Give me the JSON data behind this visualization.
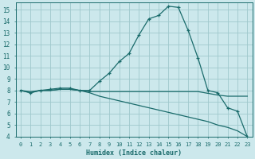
{
  "xlabel": "Humidex (Indice chaleur)",
  "bg_color": "#cce8ec",
  "grid_color": "#9fc8cc",
  "line_color": "#1a6b6b",
  "xlim": [
    -0.5,
    23.5
  ],
  "ylim": [
    4,
    15.6
  ],
  "xticks": [
    0,
    1,
    2,
    3,
    4,
    5,
    6,
    7,
    8,
    9,
    10,
    11,
    12,
    13,
    14,
    15,
    16,
    17,
    18,
    19,
    20,
    21,
    22,
    23
  ],
  "yticks": [
    4,
    5,
    6,
    7,
    8,
    9,
    10,
    11,
    12,
    13,
    14,
    15
  ],
  "line1_x": [
    0,
    1,
    2,
    3,
    4,
    5,
    6,
    7,
    8,
    9,
    10,
    11,
    12,
    13,
    14,
    15,
    16,
    17,
    18,
    19,
    20,
    21,
    22,
    23
  ],
  "line1_y": [
    8.0,
    7.8,
    8.0,
    8.1,
    8.2,
    8.2,
    8.0,
    8.0,
    8.8,
    9.5,
    10.5,
    11.2,
    12.8,
    14.2,
    14.5,
    15.3,
    15.2,
    13.2,
    10.8,
    8.0,
    7.8,
    6.5,
    6.2,
    4.0
  ],
  "line2_x": [
    0,
    1,
    2,
    3,
    4,
    5,
    6,
    7,
    8,
    9,
    10,
    11,
    12,
    13,
    14,
    15,
    16,
    17,
    18,
    19,
    20,
    21,
    22,
    23
  ],
  "line2_y": [
    8.0,
    7.9,
    8.0,
    8.0,
    8.1,
    8.1,
    8.0,
    7.9,
    7.9,
    7.9,
    7.9,
    7.9,
    7.9,
    7.9,
    7.9,
    7.9,
    7.9,
    7.9,
    7.9,
    7.75,
    7.6,
    7.5,
    7.5,
    7.5
  ],
  "line3_x": [
    0,
    1,
    2,
    3,
    4,
    5,
    6,
    7,
    8,
    9,
    10,
    11,
    12,
    13,
    14,
    15,
    16,
    17,
    18,
    19,
    20,
    21,
    22,
    23
  ],
  "line3_y": [
    8.0,
    7.8,
    8.0,
    8.0,
    8.1,
    8.1,
    8.0,
    7.8,
    7.5,
    7.3,
    7.1,
    6.9,
    6.7,
    6.5,
    6.3,
    6.1,
    5.9,
    5.7,
    5.5,
    5.3,
    5.0,
    4.8,
    4.5,
    4.0
  ]
}
